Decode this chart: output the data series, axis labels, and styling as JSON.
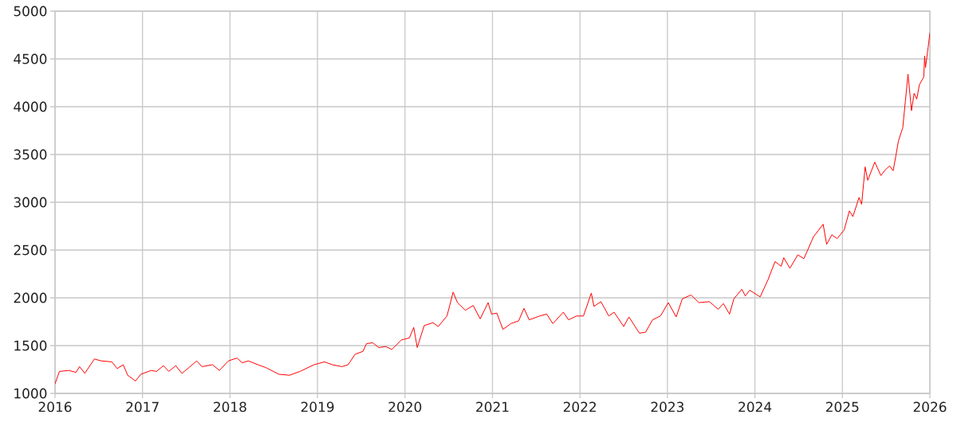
{
  "chart_data": {
    "type": "line",
    "x": [
      2016.0,
      2016.05,
      2016.16,
      2016.24,
      2016.28,
      2016.34,
      2016.45,
      2016.53,
      2016.65,
      2016.71,
      2016.78,
      2016.83,
      2016.92,
      2016.98,
      2017.1,
      2017.16,
      2017.24,
      2017.3,
      2017.38,
      2017.45,
      2017.53,
      2017.62,
      2017.68,
      2017.8,
      2017.88,
      2017.98,
      2018.08,
      2018.14,
      2018.21,
      2018.32,
      2018.41,
      2018.56,
      2018.68,
      2018.8,
      2018.96,
      2019.08,
      2019.17,
      2019.28,
      2019.35,
      2019.43,
      2019.52,
      2019.56,
      2019.63,
      2019.7,
      2019.78,
      2019.85,
      2019.96,
      2020.05,
      2020.1,
      2020.14,
      2020.22,
      2020.32,
      2020.38,
      2020.48,
      2020.52,
      2020.55,
      2020.6,
      2020.69,
      2020.78,
      2020.86,
      2020.95,
      2020.99,
      2021.05,
      2021.12,
      2021.21,
      2021.3,
      2021.36,
      2021.42,
      2021.54,
      2021.62,
      2021.69,
      2021.81,
      2021.87,
      2021.96,
      2022.04,
      2022.13,
      2022.16,
      2022.24,
      2022.33,
      2022.39,
      2022.5,
      2022.56,
      2022.68,
      2022.75,
      2022.83,
      2022.92,
      2023.01,
      2023.1,
      2023.17,
      2023.27,
      2023.36,
      2023.48,
      2023.58,
      2023.64,
      2023.71,
      2023.76,
      2023.85,
      2023.89,
      2023.94,
      2024.06,
      2024.15,
      2024.23,
      2024.3,
      2024.33,
      2024.4,
      2024.49,
      2024.56,
      2024.67,
      2024.78,
      2024.82,
      2024.88,
      2024.94,
      2025.02,
      2025.08,
      2025.12,
      2025.19,
      2025.22,
      2025.26,
      2025.29,
      2025.37,
      2025.44,
      2025.49,
      2025.54,
      2025.58,
      2025.61,
      2025.64,
      2025.69,
      2025.72,
      2025.75,
      2025.79,
      2025.82,
      2025.85,
      2025.88,
      2025.93,
      2025.94,
      2025.95,
      2025.98,
      2026.0
    ],
    "series": [
      {
        "color": "#ff0000",
        "values": [
          1100,
          1230,
          1240,
          1220,
          1280,
          1210,
          1360,
          1340,
          1330,
          1260,
          1300,
          1190,
          1130,
          1200,
          1240,
          1230,
          1290,
          1230,
          1290,
          1210,
          1270,
          1340,
          1280,
          1300,
          1240,
          1340,
          1370,
          1320,
          1340,
          1300,
          1270,
          1200,
          1190,
          1230,
          1300,
          1330,
          1300,
          1280,
          1300,
          1410,
          1440,
          1520,
          1530,
          1480,
          1490,
          1460,
          1560,
          1580,
          1690,
          1480,
          1710,
          1740,
          1700,
          1810,
          1950,
          2060,
          1950,
          1870,
          1920,
          1780,
          1950,
          1830,
          1840,
          1670,
          1730,
          1760,
          1890,
          1770,
          1810,
          1830,
          1730,
          1850,
          1770,
          1810,
          1810,
          2050,
          1910,
          1960,
          1810,
          1850,
          1700,
          1800,
          1630,
          1640,
          1770,
          1810,
          1950,
          1800,
          1990,
          2030,
          1950,
          1960,
          1880,
          1940,
          1830,
          1990,
          2090,
          2020,
          2080,
          2010,
          2190,
          2380,
          2330,
          2420,
          2310,
          2450,
          2410,
          2640,
          2770,
          2560,
          2660,
          2620,
          2710,
          2910,
          2850,
          3050,
          2980,
          3370,
          3230,
          3420,
          3280,
          3340,
          3380,
          3330,
          3480,
          3640,
          3780,
          4060,
          4340,
          3960,
          4140,
          4080,
          4230,
          4310,
          4530,
          4410,
          4620,
          4770
        ]
      }
    ],
    "xlim": [
      2016,
      2026
    ],
    "ylim": [
      1000,
      5000
    ],
    "xticks": [
      2016,
      2017,
      2018,
      2019,
      2020,
      2021,
      2022,
      2023,
      2024,
      2025,
      2026
    ],
    "yticks": [
      1000,
      1500,
      2000,
      2500,
      3000,
      3500,
      4000,
      4500,
      5000
    ],
    "grid": true
  }
}
